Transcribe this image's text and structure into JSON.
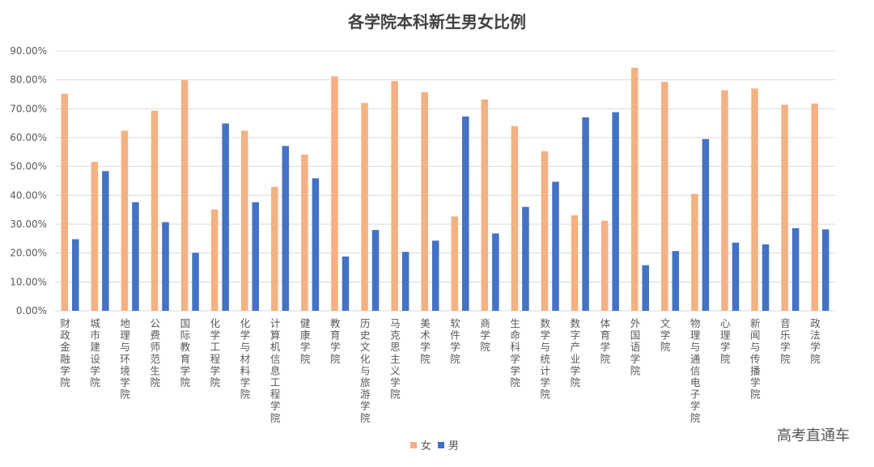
{
  "chart_data": {
    "type": "bar",
    "title": "各学院本科新生男女比例",
    "xlabel": "",
    "ylabel": "",
    "ylim": [
      0,
      90
    ],
    "yticks": [
      "0.00%",
      "10.00%",
      "20.00%",
      "30.00%",
      "40.00%",
      "50.00%",
      "60.00%",
      "70.00%",
      "80.00%",
      "90.00%"
    ],
    "grid": true,
    "legend_position": "bottom-center",
    "categories": [
      "财政金融学院",
      "城市建设学院",
      "地理与环境学院",
      "公费师范生院",
      "国际教育学院",
      "化学工程学院",
      "化学与材料学院",
      "计算机信息工程学院",
      "健康学院",
      "教育学院",
      "历史文化与旅游学院",
      "马克思主义学院",
      "美术学院",
      "软件学院",
      "商学院",
      "生命科学学院",
      "数学与统计学院",
      "数字产业学院",
      "体育学院",
      "外国语学院",
      "文学院",
      "物理与通信电子学院",
      "心理学院",
      "新闻与传播学院",
      "音乐学院",
      "政法学院"
    ],
    "series": [
      {
        "name": "女",
        "color": "#F4B183",
        "values": [
          75.2,
          51.6,
          62.4,
          69.3,
          79.9,
          35.1,
          62.4,
          42.9,
          54.1,
          81.2,
          72.0,
          79.6,
          75.7,
          32.7,
          73.2,
          64.0,
          55.3,
          33.1,
          31.2,
          84.2,
          79.3,
          40.5,
          76.4,
          77.0,
          71.4,
          71.8
        ]
      },
      {
        "name": "男",
        "color": "#4472C4",
        "values": [
          24.8,
          48.4,
          37.6,
          30.7,
          20.1,
          64.9,
          37.6,
          57.1,
          45.9,
          18.8,
          28.0,
          20.4,
          24.3,
          67.3,
          26.8,
          36.0,
          44.7,
          67.0,
          68.8,
          15.8,
          20.7,
          59.5,
          23.6,
          23.0,
          28.6,
          28.2
        ]
      }
    ]
  },
  "watermark": "高考直通车"
}
